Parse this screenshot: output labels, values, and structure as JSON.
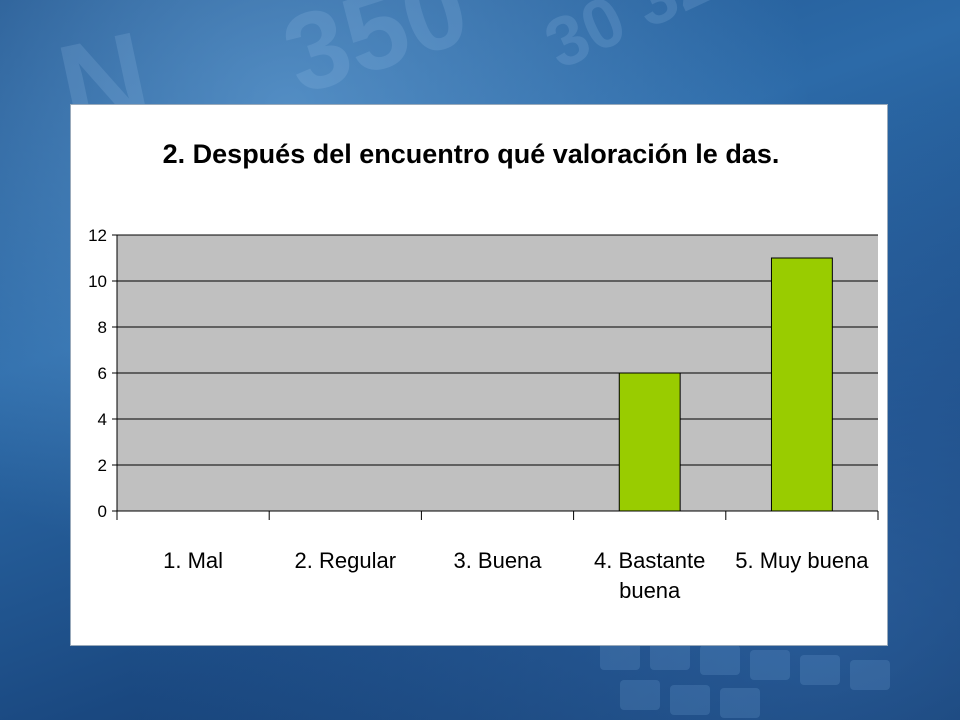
{
  "chart_data": {
    "type": "bar",
    "title": "2. Después del encuentro qué valoración le das.",
    "categories": [
      [
        "1. Mal"
      ],
      [
        "2. Regular"
      ],
      [
        "3. Buena"
      ],
      [
        "4. Bastante",
        "buena"
      ],
      [
        "5. Muy buena"
      ]
    ],
    "values": [
      0,
      0,
      0,
      6,
      11
    ],
    "ylim": [
      0,
      12
    ],
    "yticks": [
      0,
      2,
      4,
      6,
      8,
      10,
      12
    ],
    "grid": true,
    "legend": "none",
    "colors": {
      "bar": "#99cc00",
      "plot_background": "#c0c0c0",
      "gridline": "#000000"
    }
  }
}
